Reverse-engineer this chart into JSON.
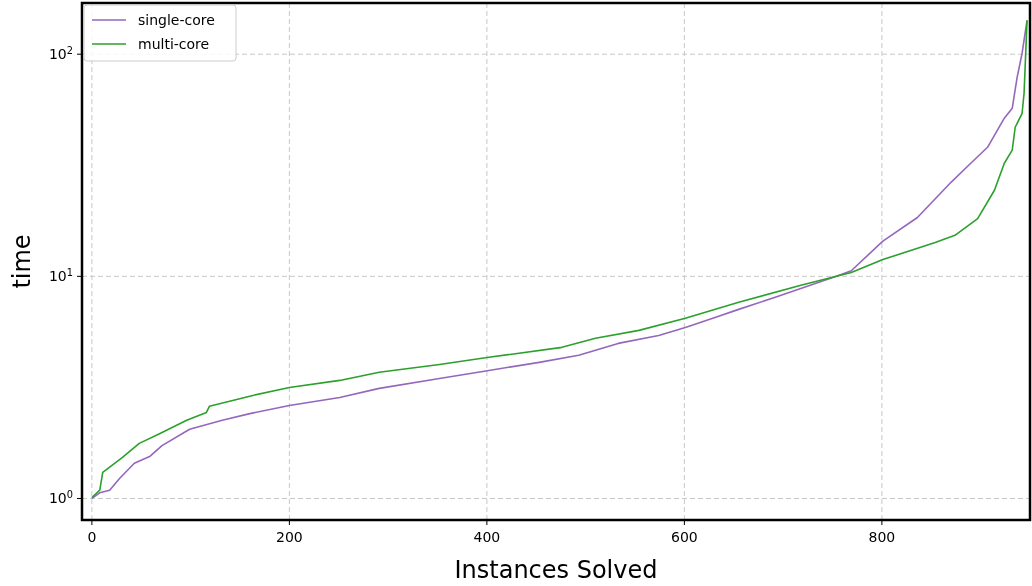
{
  "chart_data": {
    "type": "line",
    "xlabel": "Instances Solved",
    "ylabel": "time",
    "log": "y",
    "grid": true,
    "legend": "top left",
    "line_style": "solid",
    "marker": "none",
    "xlim": [
      -10,
      950
    ],
    "xticks": [
      0,
      200,
      400,
      600,
      800
    ],
    "ylim": [
      0.8,
      170
    ],
    "yticks": [
      {
        "value": 1,
        "label": "10$^{0}$"
      },
      {
        "value": 10,
        "label": "10$^{1}$"
      },
      {
        "value": 100,
        "label": "10$^{2}$"
      }
    ],
    "series": [
      {
        "name": "single-core",
        "color": "#9467bd",
        "x": [
          0,
          8,
          18,
          28,
          43,
          59,
          71,
          99,
          132,
          160,
          200,
          251,
          291,
          352,
          402,
          453,
          493,
          533,
          574,
          601,
          631,
          655,
          695,
          754,
          769,
          801,
          836,
          870,
          890,
          907,
          924,
          932,
          937,
          942,
          947
        ],
        "values": [
          1.0,
          1.06,
          1.09,
          1.23,
          1.44,
          1.55,
          1.73,
          2.05,
          2.25,
          2.41,
          2.62,
          2.85,
          3.13,
          3.47,
          3.77,
          4.1,
          4.41,
          4.99,
          5.42,
          5.89,
          6.53,
          7.1,
          8.13,
          10.0,
          10.6,
          14.4,
          18.4,
          26.5,
          32.3,
          38.1,
          51.5,
          57.1,
          78.8,
          101,
          142
        ]
      },
      {
        "name": "multi-core",
        "color": "#2ca02c",
        "x": [
          0,
          8,
          11,
          31,
          48,
          69,
          96,
          116,
          119,
          163,
          200,
          251,
          291,
          352,
          402,
          476,
          510,
          554,
          601,
          655,
          718,
          769,
          801,
          854,
          874,
          897,
          914,
          924,
          932,
          935,
          942,
          944,
          947
        ],
        "values": [
          1.01,
          1.09,
          1.31,
          1.53,
          1.77,
          1.96,
          2.25,
          2.44,
          2.6,
          2.91,
          3.16,
          3.4,
          3.7,
          4.01,
          4.32,
          4.79,
          5.26,
          5.71,
          6.47,
          7.64,
          9.11,
          10.4,
          11.9,
          14.2,
          15.3,
          18.2,
          24.4,
          32.3,
          37.0,
          46.9,
          54.2,
          66.7,
          142
        ]
      }
    ]
  }
}
